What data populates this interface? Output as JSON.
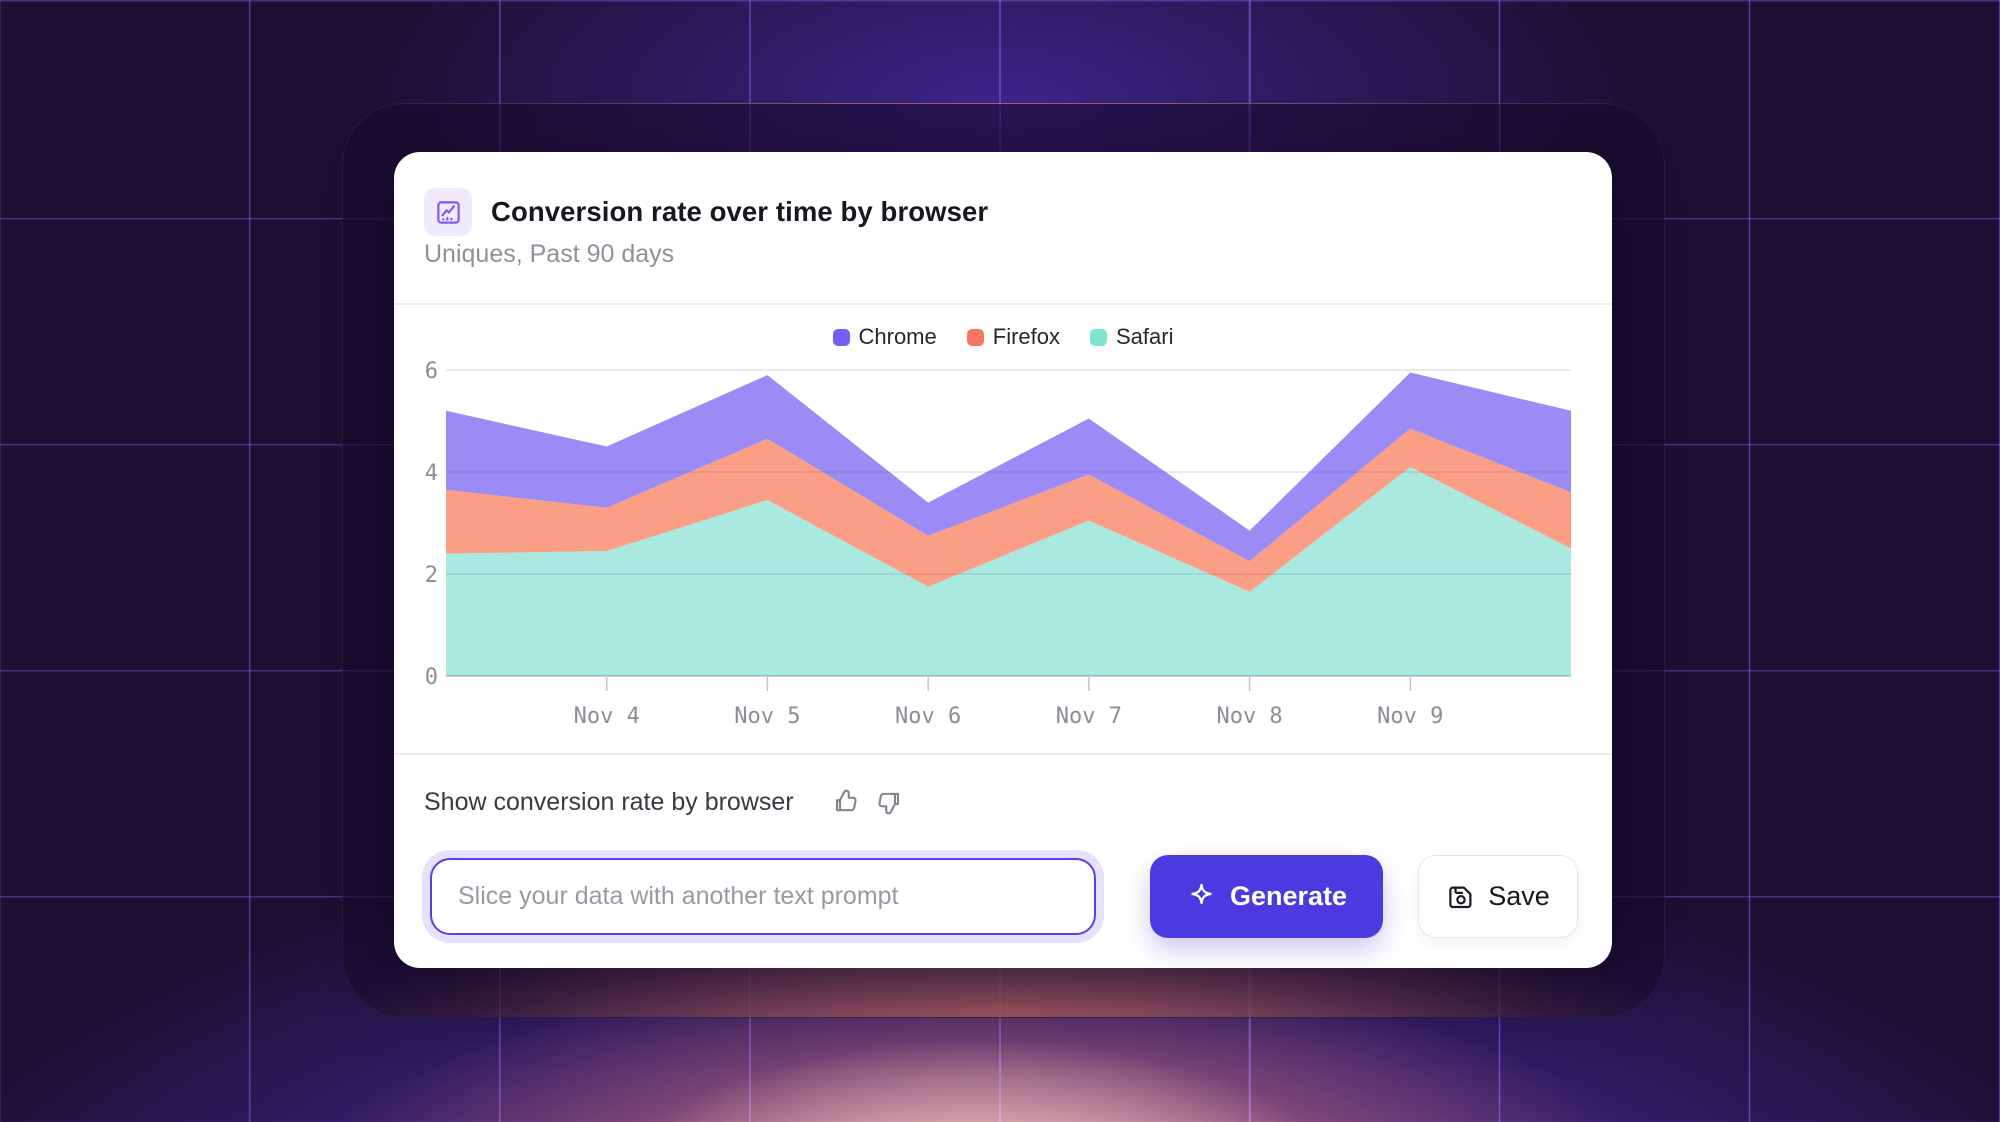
{
  "card": {
    "title": "Conversion rate over time by browser",
    "subtitle": "Uniques, Past 90 days"
  },
  "chart_data": {
    "type": "area",
    "stacked": true,
    "title": "Conversion rate over time by browser",
    "x_labels": [
      "",
      "Nov 4",
      "Nov 5",
      "Nov 6",
      "Nov 7",
      "Nov 8",
      "Nov 9",
      ""
    ],
    "y_ticks": [
      0,
      2,
      4,
      6
    ],
    "y_tick_labels": [
      "0",
      "2",
      "4",
      "6"
    ],
    "ylim": [
      0,
      6
    ],
    "grid": "horizontal",
    "legend_position": "top-center",
    "stack_bottom_to_top": [
      "Safari",
      "Firefox",
      "Chrome"
    ],
    "series": [
      {
        "name": "Chrome",
        "swatch_color": "#7a5cf7",
        "area_color": "#9c8bf5",
        "values": [
          1.55,
          1.2,
          1.25,
          0.65,
          1.1,
          0.6,
          1.1,
          1.6
        ]
      },
      {
        "name": "Firefox",
        "swatch_color": "#f97663",
        "area_color": "#fb9e86",
        "values": [
          1.25,
          0.85,
          1.2,
          1.0,
          0.9,
          0.6,
          0.75,
          1.1
        ]
      },
      {
        "name": "Safari",
        "swatch_color": "#7ee4d2",
        "area_color": "#a9e9e0",
        "values": [
          2.4,
          2.45,
          3.45,
          1.75,
          3.05,
          1.65,
          4.1,
          2.5
        ]
      }
    ]
  },
  "prompt": {
    "label": "Show conversion rate by browser"
  },
  "input": {
    "value": "",
    "placeholder": "Slice your data with another text prompt"
  },
  "buttons": {
    "generate": "Generate",
    "save": "Save"
  },
  "colors": {
    "accent": "#4b3ae0",
    "chrome": "#7a5cf7",
    "firefox": "#f97663",
    "safari": "#7ee4d2"
  }
}
